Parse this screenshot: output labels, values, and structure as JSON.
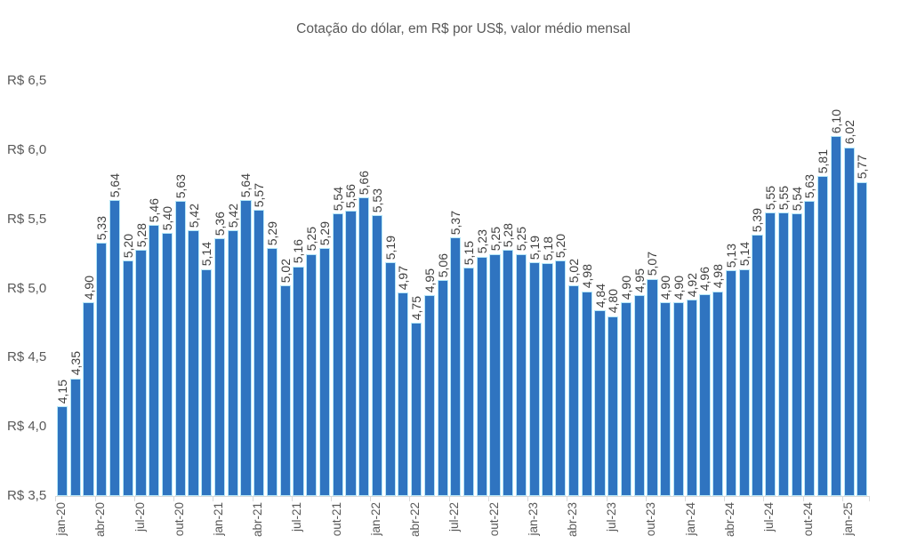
{
  "chart_data": {
    "type": "bar",
    "title": "Cotação do dólar, em R$ por US$, valor médio mensal",
    "xlabel": "",
    "ylabel": "",
    "ylim": [
      3.5,
      6.5
    ],
    "y_tick_step": 0.5,
    "grid": false,
    "legend": "none",
    "x_tick_interval": 3,
    "bar_color": "#2f74c0",
    "bar_border_color": "#b5e7f8",
    "axis_color": "#d9d9d9",
    "title_color": "#595959",
    "axis_text_color": "#595959",
    "data_label_color": "#3f3f3f",
    "y_tick_labels": [
      "R$ 6,5",
      "R$ 6,0",
      "R$ 5,5",
      "R$ 5,0",
      "R$ 4,5",
      "R$ 4,0",
      "R$ 3,5"
    ],
    "categories": [
      "jan-20",
      "fev-20",
      "mar-20",
      "abr-20",
      "mai-20",
      "jun-20",
      "jul-20",
      "ago-20",
      "set-20",
      "out-20",
      "nov-20",
      "dez-20",
      "jan-21",
      "fev-21",
      "mar-21",
      "abr-21",
      "mai-21",
      "jun-21",
      "jul-21",
      "ago-21",
      "set-21",
      "out-21",
      "nov-21",
      "dez-21",
      "jan-22",
      "fev-22",
      "mar-22",
      "abr-22",
      "mai-22",
      "jun-22",
      "jul-22",
      "ago-22",
      "set-22",
      "out-22",
      "nov-22",
      "dez-22",
      "jan-23",
      "fev-23",
      "mar-23",
      "abr-23",
      "mai-23",
      "jun-23",
      "jul-23",
      "ago-23",
      "set-23",
      "out-23",
      "nov-23",
      "dez-23",
      "jan-24",
      "fev-24",
      "mar-24",
      "abr-24",
      "mai-24",
      "jun-24",
      "jul-24",
      "ago-24",
      "set-24",
      "out-24",
      "nov-24",
      "dez-24",
      "jan-25",
      "fev-25"
    ],
    "values": [
      4.15,
      4.35,
      4.9,
      5.33,
      5.64,
      5.2,
      5.28,
      5.46,
      5.4,
      5.63,
      5.42,
      5.14,
      5.36,
      5.42,
      5.64,
      5.57,
      5.29,
      5.02,
      5.16,
      5.25,
      5.29,
      5.54,
      5.56,
      5.66,
      5.53,
      5.19,
      4.97,
      4.75,
      4.95,
      5.06,
      5.37,
      5.15,
      5.23,
      5.25,
      5.28,
      5.25,
      5.19,
      5.18,
      5.2,
      5.02,
      4.98,
      4.84,
      4.8,
      4.9,
      4.95,
      5.07,
      4.9,
      4.9,
      4.92,
      4.96,
      4.98,
      5.13,
      5.14,
      5.39,
      5.55,
      5.55,
      5.54,
      5.63,
      5.81,
      6.1,
      6.02,
      5.77
    ],
    "value_labels": [
      "4,15",
      "4,35",
      "4,90",
      "5,33",
      "5,64",
      "5,20",
      "5,28",
      "5,46",
      "5,40",
      "5,63",
      "5,42",
      "5,14",
      "5,36",
      "5,42",
      "5,64",
      "5,57",
      "5,29",
      "5,02",
      "5,16",
      "5,25",
      "5,29",
      "5,54",
      "5,56",
      "5,66",
      "5,53",
      "5,19",
      "4,97",
      "4,75",
      "4,95",
      "5,06",
      "5,37",
      "5,15",
      "5,23",
      "5,25",
      "5,28",
      "5,25",
      "5,19",
      "5,18",
      "5,20",
      "5,02",
      "4,98",
      "4,84",
      "4,80",
      "4,90",
      "4,95",
      "5,07",
      "4,90",
      "4,90",
      "4,92",
      "4,96",
      "4,98",
      "5,13",
      "5,14",
      "5,39",
      "5,55",
      "5,55",
      "5,54",
      "5,63",
      "5,81",
      "6,10",
      "6,02",
      "5,77"
    ]
  }
}
